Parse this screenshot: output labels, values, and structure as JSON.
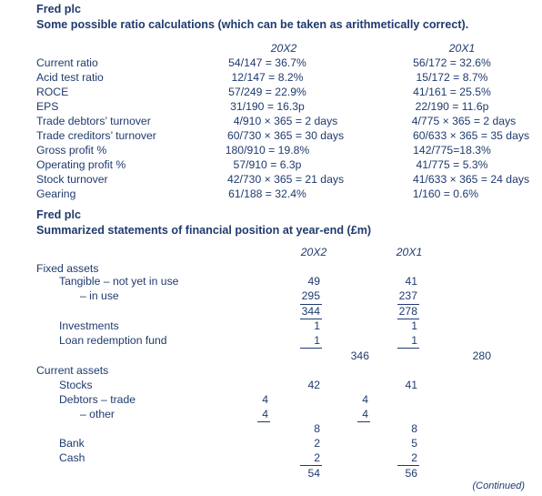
{
  "ratios": {
    "company": "Fred plc",
    "heading": "Some possible ratio calculations (which can be taken as arithmetically correct).",
    "col_headers": [
      "20X2",
      "20X1"
    ],
    "rows": [
      {
        "label": "Current ratio",
        "y20x2": "54/147 = 36.7%",
        "y20x1": "56/172 = 32.6%"
      },
      {
        "label": "Acid test ratio",
        "y20x2": "12/147 = 8.2%",
        "y20x1": "15/172 = 8.7%"
      },
      {
        "label": "ROCE",
        "y20x2": "57/249 = 22.9%",
        "y20x1": "41/161 = 25.5%"
      },
      {
        "label": "EPS",
        "y20x2": "31/190 = 16.3p",
        "y20x1": "22/190 = 11.6p"
      },
      {
        "label": "Trade debtors’ turnover",
        "y20x2": "4/910 × 365 = 2 days",
        "y20x1": "4/775 × 365 = 2 days"
      },
      {
        "label": "Trade creditors’ turnover",
        "y20x2": "60/730 × 365 = 30 days",
        "y20x1": "60/633 × 365 = 35 days"
      },
      {
        "label": "Gross profit %",
        "y20x2": "180/910 = 19.8%",
        "y20x1": "142/775=18.3%"
      },
      {
        "label": "Operating profit %",
        "y20x2": "57/910 = 6.3p",
        "y20x1": "41/775 = 5.3%"
      },
      {
        "label": "Stock turnover",
        "y20x2": "42/730 × 365 = 21 days",
        "y20x1": "41/633 × 365 = 24 days"
      },
      {
        "label": "Gearing",
        "y20x2": "61/188 = 32.4%",
        "y20x1": "1/160 = 0.6%"
      }
    ]
  },
  "sfp": {
    "company": "Fred plc",
    "heading": "Summarized statements of financial position at year-end (£m)",
    "col_headers": [
      "20X2",
      "20X1"
    ],
    "fixed_assets": "Fixed assets",
    "tangible_label": "Tangible – not yet in use",
    "in_use_label": "– in use",
    "investments_label": "Investments",
    "loan_label": "Loan redemption fund",
    "current_assets": "Current assets",
    "stocks_label": "Stocks",
    "debtors_trade_label": "Debtors – trade",
    "debtors_other_label": "– other",
    "bank_label": "Bank",
    "cash_label": "Cash",
    "tangible": [
      "49",
      "41"
    ],
    "in_use": [
      "295",
      "237"
    ],
    "tangible_total": [
      "344",
      "278"
    ],
    "investments": [
      "1",
      "1"
    ],
    "loan": [
      "1",
      "1"
    ],
    "fixed_total": [
      "346",
      "280"
    ],
    "stocks": [
      "42",
      "41"
    ],
    "debtors_trade": [
      "4",
      "4"
    ],
    "debtors_other": [
      "4",
      "4"
    ],
    "debtors_total": [
      "8",
      "8"
    ],
    "bank": [
      "2",
      "5"
    ],
    "cash": [
      "2",
      "2"
    ],
    "current_total": [
      "54",
      "56"
    ]
  },
  "footer": "(Continued)"
}
